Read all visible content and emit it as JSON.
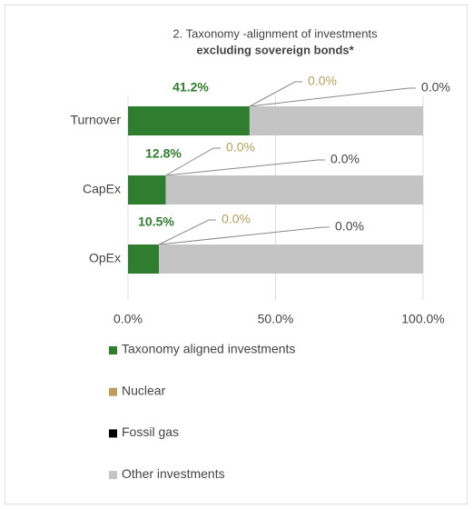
{
  "chart_data": {
    "type": "stacked-bar-horizontal",
    "title": "2. Taxonomy -alignment of investments",
    "subtitle": "excluding sovereign bonds*",
    "categories": [
      "Turnover",
      "CapEx",
      "OpEx"
    ],
    "series": [
      {
        "name": "Taxonomy aligned investments",
        "color": "#2f7d2e",
        "values": [
          41.2,
          12.8,
          10.5
        ],
        "value_labels": [
          "41.2%",
          "12.8%",
          "10.5%"
        ]
      },
      {
        "name": "Nuclear",
        "color": "#b8a05a",
        "values": [
          0,
          0,
          0
        ],
        "value_labels": [
          "0.0%",
          "0.0%",
          "0.0%"
        ]
      },
      {
        "name": "Fossil gas",
        "color": "#000000",
        "values": [
          0,
          0,
          0
        ],
        "value_labels": [
          "0.0%",
          "0.0%",
          "0.0%"
        ]
      },
      {
        "name": "Other investments",
        "color": "#c4c4c4",
        "values": [
          58.8,
          87.2,
          89.5
        ]
      }
    ],
    "xlim": [
      0,
      100
    ],
    "xticks": [
      {
        "value": 0,
        "label": "0.0%"
      },
      {
        "value": 50,
        "label": "50.0%"
      },
      {
        "value": 100,
        "label": "100.0%"
      }
    ],
    "grid": true
  }
}
